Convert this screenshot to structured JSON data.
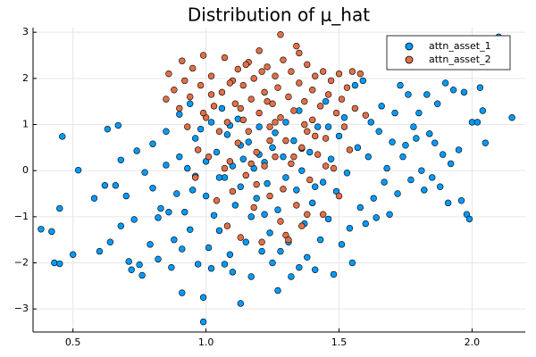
{
  "chart_data": {
    "type": "scatter",
    "title": "Distribution of μ_hat",
    "xlabel": "",
    "ylabel": "",
    "xlim": [
      0.35,
      2.2
    ],
    "ylim": [
      -3.5,
      3.1
    ],
    "x_ticks": [
      0.5,
      1.0,
      1.5,
      2.0
    ],
    "x_tick_labels": [
      "0.5",
      "1.0",
      "1.5",
      "2.0"
    ],
    "y_ticks": [
      -3,
      -2,
      -1,
      0,
      1,
      2,
      3
    ],
    "y_tick_labels": [
      "−3",
      "−2",
      "−1",
      "0",
      "1",
      "2",
      "3"
    ],
    "grid": true,
    "legend": {
      "position": "top-right",
      "entries": [
        "attn_asset_1",
        "attn_asset_2"
      ]
    },
    "series": [
      {
        "name": "attn_asset_1",
        "color": "#009AF9",
        "points": [
          [
            0.38,
            -1.27
          ],
          [
            0.42,
            -1.32
          ],
          [
            0.43,
            -2.0
          ],
          [
            0.45,
            -2.02
          ],
          [
            0.45,
            -0.82
          ],
          [
            0.46,
            0.74
          ],
          [
            0.5,
            -1.82
          ],
          [
            0.52,
            0.01
          ],
          [
            0.58,
            -0.6
          ],
          [
            0.6,
            -1.75
          ],
          [
            0.62,
            -0.32
          ],
          [
            0.63,
            0.9
          ],
          [
            0.64,
            -1.55
          ],
          [
            0.66,
            -0.32
          ],
          [
            0.67,
            0.98
          ],
          [
            0.68,
            0.23
          ],
          [
            0.68,
            -1.2
          ],
          [
            0.7,
            -0.55
          ],
          [
            0.71,
            -1.97
          ],
          [
            0.72,
            -2.15
          ],
          [
            0.73,
            -1.06
          ],
          [
            0.74,
            0.43
          ],
          [
            0.75,
            -2.04
          ],
          [
            0.76,
            -2.27
          ],
          [
            0.77,
            -0.04
          ],
          [
            0.79,
            -1.6
          ],
          [
            0.8,
            -0.38
          ],
          [
            0.8,
            0.58
          ],
          [
            0.82,
            -1.02
          ],
          [
            0.82,
            -1.92
          ],
          [
            0.83,
            -0.82
          ],
          [
            0.85,
            0.85
          ],
          [
            0.85,
            0.12
          ],
          [
            0.86,
            -0.9
          ],
          [
            0.87,
            -2.1
          ],
          [
            0.88,
            -1.5
          ],
          [
            0.89,
            -0.5
          ],
          [
            0.9,
            1.22
          ],
          [
            0.9,
            0.3
          ],
          [
            0.91,
            -1.7
          ],
          [
            0.91,
            -2.65
          ],
          [
            0.92,
            -0.9
          ],
          [
            0.93,
            0.05
          ],
          [
            0.94,
            1.45
          ],
          [
            0.94,
            -1.28
          ],
          [
            0.95,
            -0.42
          ],
          [
            0.96,
            0.7
          ],
          [
            0.97,
            -2.03
          ],
          [
            0.98,
            0.9
          ],
          [
            0.99,
            -2.75
          ],
          [
            0.99,
            -3.28
          ],
          [
            1.0,
            -0.55
          ],
          [
            1.0,
            0.2
          ],
          [
            1.01,
            -1.67
          ],
          [
            1.02,
            1.05
          ],
          [
            1.02,
            -2.12
          ],
          [
            1.03,
            -0.97
          ],
          [
            1.04,
            0.4
          ],
          [
            1.05,
            -1.3
          ],
          [
            1.06,
            1.35
          ],
          [
            1.07,
            -2.03
          ],
          [
            1.07,
            -0.15
          ],
          [
            1.08,
            0.78
          ],
          [
            1.09,
            -1.82
          ],
          [
            1.1,
            -2.2
          ],
          [
            1.1,
            0.1
          ],
          [
            1.11,
            -0.75
          ],
          [
            1.12,
            1.12
          ],
          [
            1.13,
            -2.88
          ],
          [
            1.13,
            -0.35
          ],
          [
            1.14,
            0.25
          ],
          [
            1.15,
            -1.55
          ],
          [
            1.16,
            0.62
          ],
          [
            1.17,
            -2.3
          ],
          [
            1.17,
            -1.0
          ],
          [
            1.18,
            0.05
          ],
          [
            1.19,
            -0.6
          ],
          [
            1.2,
            0.95
          ],
          [
            1.2,
            0.35
          ],
          [
            1.21,
            -1.75
          ],
          [
            1.22,
            0.18
          ],
          [
            1.23,
            -0.28
          ],
          [
            1.24,
            -1.35
          ],
          [
            1.25,
            0.5
          ],
          [
            1.25,
            -2.0
          ],
          [
            1.26,
            0.82
          ],
          [
            1.27,
            -0.85
          ],
          [
            1.28,
            -1.75
          ],
          [
            1.29,
            0.3
          ],
          [
            1.3,
            -0.15
          ],
          [
            1.3,
            1.05
          ],
          [
            1.31,
            -1.55
          ],
          [
            1.32,
            -2.3
          ],
          [
            1.33,
            0.65
          ],
          [
            1.34,
            -0.42
          ],
          [
            1.35,
            -2.1
          ],
          [
            1.35,
            1.3
          ],
          [
            1.36,
            0.0
          ],
          [
            1.37,
            -1.15
          ],
          [
            1.38,
            -1.88
          ],
          [
            1.39,
            0.4
          ],
          [
            1.4,
            -0.7
          ],
          [
            1.41,
            -2.15
          ],
          [
            1.42,
            0.95
          ],
          [
            1.43,
            -1.5
          ],
          [
            1.44,
            -0.25
          ],
          [
            1.45,
            1.5
          ],
          [
            1.46,
            -1.05
          ],
          [
            1.47,
            0.25
          ],
          [
            1.48,
            -2.25
          ],
          [
            1.49,
            -0.45
          ],
          [
            1.5,
            0.75
          ],
          [
            1.51,
            -1.6
          ],
          [
            1.52,
            1.15
          ],
          [
            1.53,
            -0.05
          ],
          [
            1.54,
            -1.25
          ],
          [
            1.55,
            -2.0
          ],
          [
            1.56,
            1.85
          ],
          [
            1.57,
            0.5
          ],
          [
            1.58,
            -0.8
          ],
          [
            1.59,
            1.95
          ],
          [
            1.6,
            -1.15
          ],
          [
            1.61,
            0.3
          ],
          [
            1.62,
            1.05
          ],
          [
            1.63,
            -0.6
          ],
          [
            1.64,
            -1.02
          ],
          [
            1.65,
            0.85
          ],
          [
            1.66,
            1.4
          ],
          [
            1.67,
            -0.25
          ],
          [
            1.68,
            0.05
          ],
          [
            1.69,
            -0.95
          ],
          [
            1.7,
            0.62
          ],
          [
            1.71,
            1.25
          ],
          [
            1.72,
            -0.5
          ],
          [
            1.73,
            1.85
          ],
          [
            1.74,
            0.3
          ],
          [
            1.75,
            0.55
          ],
          [
            1.76,
            1.65
          ],
          [
            1.77,
            -0.2
          ],
          [
            1.78,
            0.95
          ],
          [
            1.79,
            0.7
          ],
          [
            1.8,
            1.25
          ],
          [
            1.81,
            0.0
          ],
          [
            1.82,
            -0.42
          ],
          [
            1.83,
            1.65
          ],
          [
            1.84,
            0.8
          ],
          [
            1.85,
            -0.15
          ],
          [
            1.86,
            0.6
          ],
          [
            1.87,
            1.45
          ],
          [
            1.88,
            -0.35
          ],
          [
            1.89,
            0.35
          ],
          [
            1.9,
            1.9
          ],
          [
            1.91,
            -0.7
          ],
          [
            1.92,
            0.15
          ],
          [
            1.93,
            1.75
          ],
          [
            1.95,
            0.45
          ],
          [
            1.96,
            -0.65
          ],
          [
            1.97,
            1.7
          ],
          [
            1.98,
            -0.95
          ],
          [
            1.99,
            -1.05
          ],
          [
            2.0,
            1.05
          ],
          [
            2.02,
            1.05
          ],
          [
            2.03,
            1.8
          ],
          [
            2.04,
            1.3
          ],
          [
            2.05,
            0.6
          ],
          [
            2.1,
            2.9
          ],
          [
            2.15,
            1.15
          ],
          [
            1.27,
            -2.6
          ],
          [
            1.05,
            -0.15
          ],
          [
            1.13,
            0.55
          ],
          [
            1.22,
            -0.95
          ],
          [
            1.36,
            0.48
          ],
          [
            1.46,
            0.95
          ],
          [
            0.96,
            -0.12
          ],
          [
            1.09,
            0.98
          ],
          [
            1.41,
            -0.35
          ]
        ]
      },
      {
        "name": "attn_asset_2",
        "color": "#E26F46",
        "points": [
          [
            0.85,
            1.55
          ],
          [
            0.86,
            2.1
          ],
          [
            0.88,
            1.75
          ],
          [
            0.9,
            1.35
          ],
          [
            0.91,
            2.38
          ],
          [
            0.92,
            1.95
          ],
          [
            0.93,
            0.95
          ],
          [
            0.94,
            1.6
          ],
          [
            0.95,
            2.22
          ],
          [
            0.96,
            -0.15
          ],
          [
            0.97,
            0.45
          ],
          [
            0.98,
            1.85
          ],
          [
            0.99,
            2.5
          ],
          [
            1.0,
            1.15
          ],
          [
            1.01,
            0.3
          ],
          [
            1.02,
            2.05
          ],
          [
            1.03,
            1.4
          ],
          [
            1.04,
            -0.65
          ],
          [
            1.05,
            0.85
          ],
          [
            1.06,
            1.7
          ],
          [
            1.07,
            2.45
          ],
          [
            1.08,
            -1.2
          ],
          [
            1.08,
            1.05
          ],
          [
            1.09,
            0.2
          ],
          [
            1.1,
            1.95
          ],
          [
            1.1,
            -0.45
          ],
          [
            1.11,
            1.45
          ],
          [
            1.12,
            2.2
          ],
          [
            1.12,
            0.6
          ],
          [
            1.13,
            -1.45
          ],
          [
            1.14,
            1.85
          ],
          [
            1.14,
            1.1
          ],
          [
            1.15,
            -0.1
          ],
          [
            1.16,
            2.35
          ],
          [
            1.16,
            0.85
          ],
          [
            1.17,
            1.55
          ],
          [
            1.18,
            -0.8
          ],
          [
            1.18,
            2.0
          ],
          [
            1.19,
            0.4
          ],
          [
            1.2,
            1.25
          ],
          [
            1.2,
            2.6
          ],
          [
            1.21,
            -1.55
          ],
          [
            1.22,
            1.7
          ],
          [
            1.22,
            0.1
          ],
          [
            1.23,
            2.25
          ],
          [
            1.24,
            0.95
          ],
          [
            1.24,
            -0.55
          ],
          [
            1.25,
            1.45
          ],
          [
            1.26,
            2.05
          ],
          [
            1.26,
            0.3
          ],
          [
            1.27,
            1.8
          ],
          [
            1.28,
            -1.1
          ],
          [
            1.28,
            1.15
          ],
          [
            1.29,
            2.4
          ],
          [
            1.3,
            0.65
          ],
          [
            1.3,
            -1.4
          ],
          [
            1.31,
            1.6
          ],
          [
            1.32,
            2.15
          ],
          [
            1.32,
            0.15
          ],
          [
            1.33,
            1.3
          ],
          [
            1.34,
            -0.75
          ],
          [
            1.34,
            2.7
          ],
          [
            1.35,
            1.9
          ],
          [
            1.36,
            0.5
          ],
          [
            1.36,
            -1.2
          ],
          [
            1.37,
            1.5
          ],
          [
            1.38,
            2.3
          ],
          [
            1.38,
            0.85
          ],
          [
            1.39,
            -0.2
          ],
          [
            1.4,
            1.75
          ],
          [
            1.4,
            1.1
          ],
          [
            1.41,
            2.05
          ],
          [
            1.42,
            0.35
          ],
          [
            1.43,
            1.4
          ],
          [
            1.44,
            -0.95
          ],
          [
            1.44,
            2.15
          ],
          [
            1.45,
            0.7
          ],
          [
            1.46,
            1.65
          ],
          [
            1.47,
            1.95
          ],
          [
            1.48,
            0.05
          ],
          [
            1.49,
            1.25
          ],
          [
            1.5,
            2.1
          ],
          [
            1.5,
            -0.55
          ],
          [
            1.51,
            1.55
          ],
          [
            1.52,
            0.95
          ],
          [
            1.53,
            1.8
          ],
          [
            1.54,
            0.45
          ],
          [
            1.55,
            2.15
          ],
          [
            1.56,
            1.35
          ],
          [
            1.58,
            2.1
          ],
          [
            1.6,
            1.2
          ],
          [
            1.28,
            2.95
          ],
          [
            1.23,
            1.5
          ],
          [
            1.17,
            0.15
          ],
          [
            1.33,
            0.3
          ],
          [
            1.45,
            0.1
          ],
          [
            1.02,
            1.65
          ],
          [
            1.07,
            0.05
          ],
          [
            1.19,
            -0.3
          ],
          [
            1.29,
            -0.4
          ],
          [
            1.38,
            -0.95
          ],
          [
            1.13,
            1.35
          ],
          [
            1.26,
            1.05
          ],
          [
            1.41,
            0.75
          ],
          [
            1.31,
            -1.5
          ],
          [
            1.21,
            2.15
          ],
          [
            1.35,
            2.55
          ],
          [
            1.09,
            1.9
          ],
          [
            0.99,
            1.25
          ],
          [
            1.15,
            2.3
          ],
          [
            1.24,
            0.65
          ],
          [
            1.37,
            1.0
          ]
        ]
      }
    ]
  }
}
